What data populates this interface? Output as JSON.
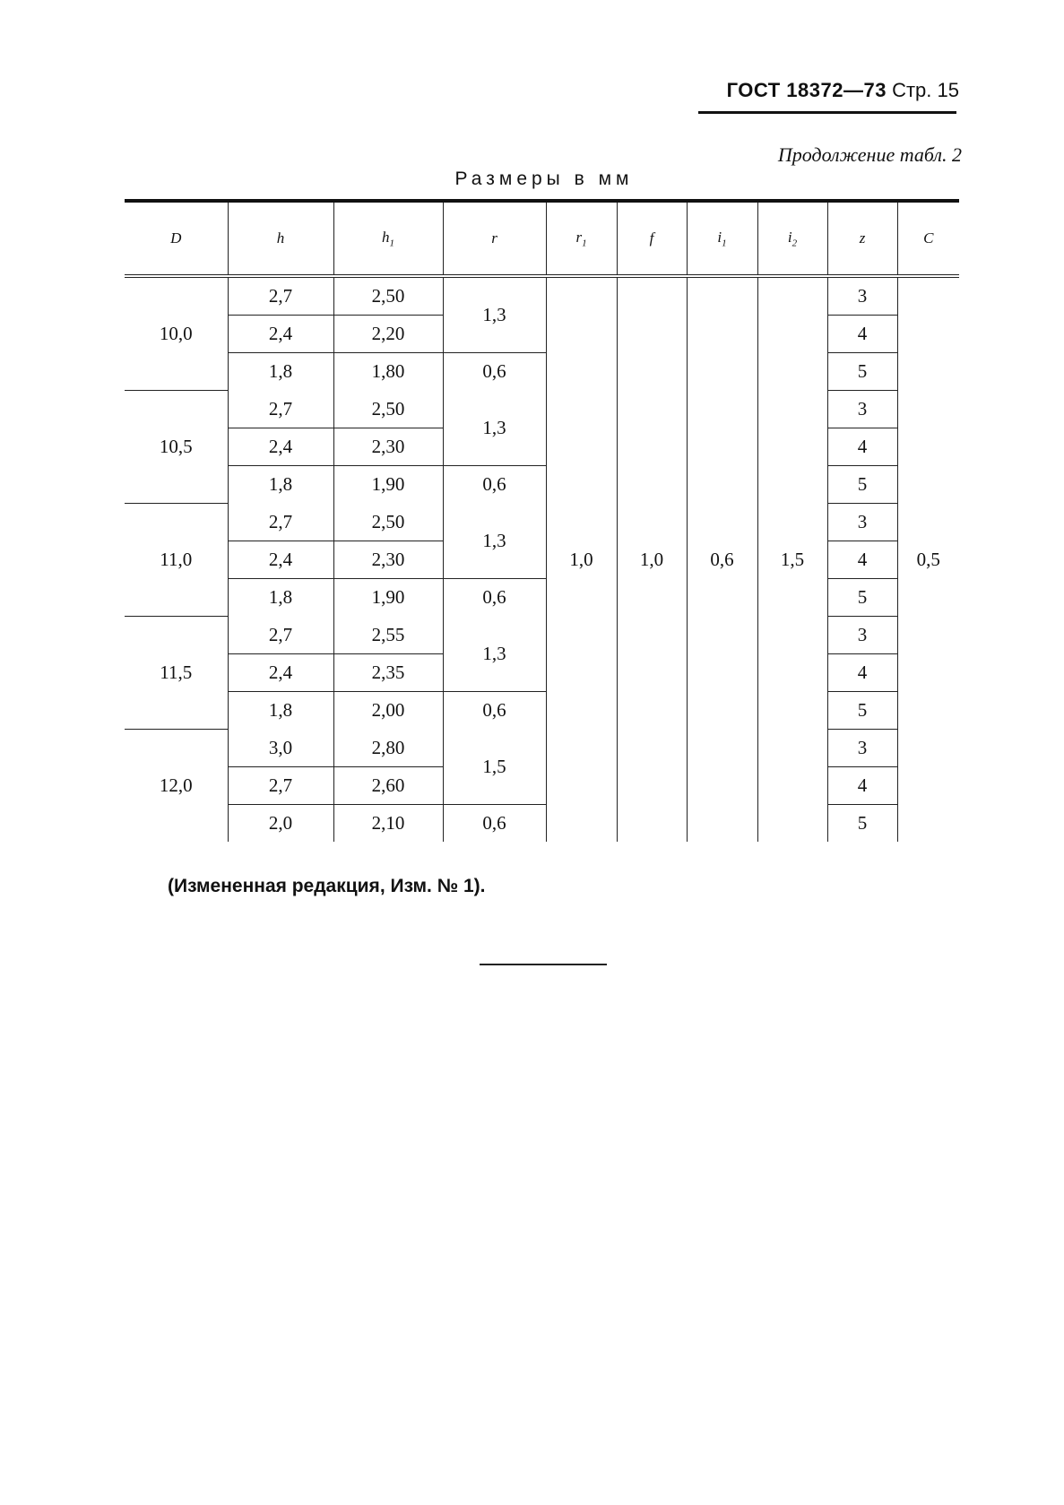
{
  "header": {
    "standard": "ГОСТ 18372—73",
    "page": "Стр. 15"
  },
  "continuation": "Продолжение табл. 2",
  "units": "Размеры в мм",
  "table": {
    "columns": [
      "D",
      "h",
      "h1",
      "r",
      "r1",
      "f",
      "i1",
      "i2",
      "z",
      "C"
    ],
    "constants": {
      "r1": "1,0",
      "f": "1,0",
      "i1": "0,6",
      "i2": "1,5",
      "C": "0,5"
    },
    "groups": [
      {
        "D": "10,0",
        "h": [
          "2,7",
          "2,4",
          "1,8"
        ],
        "h1": [
          "2,50",
          "2,20",
          "1,80"
        ],
        "r": [
          "1,3",
          "0,6"
        ],
        "z": [
          "3",
          "4",
          "5"
        ]
      },
      {
        "D": "10,5",
        "h": [
          "2,7",
          "2,4",
          "1,8"
        ],
        "h1": [
          "2,50",
          "2,30",
          "1,90"
        ],
        "r": [
          "1,3",
          "0,6"
        ],
        "z": [
          "3",
          "4",
          "5"
        ]
      },
      {
        "D": "11,0",
        "h": [
          "2,7",
          "2,4",
          "1,8"
        ],
        "h1": [
          "2,50",
          "2,30",
          "1,90"
        ],
        "r": [
          "1,3",
          "0,6"
        ],
        "z": [
          "3",
          "4",
          "5"
        ]
      },
      {
        "D": "11,5",
        "h": [
          "2,7",
          "2,4",
          "1,8"
        ],
        "h1": [
          "2,55",
          "2,35",
          "2,00"
        ],
        "r": [
          "1,3",
          "0,6"
        ],
        "z": [
          "3",
          "4",
          "5"
        ]
      },
      {
        "D": "12,0",
        "h": [
          "3,0",
          "2,7",
          "2,0"
        ],
        "h1": [
          "2,80",
          "2,60",
          "2,10"
        ],
        "r": [
          "1,5",
          "0,6"
        ],
        "z": [
          "3",
          "4",
          "5"
        ]
      }
    ]
  },
  "note": "(Измененная редакция, Изм. № 1)."
}
